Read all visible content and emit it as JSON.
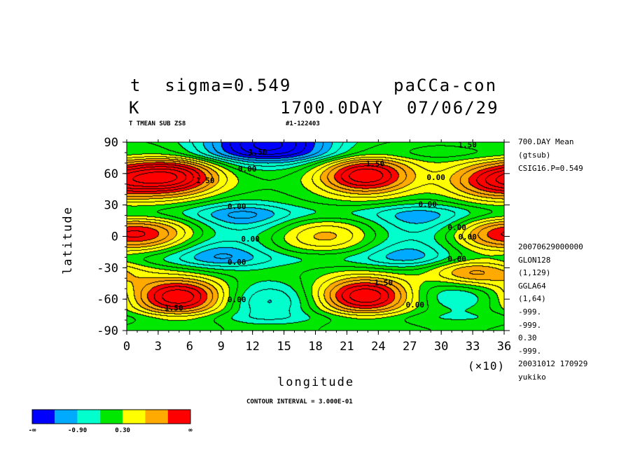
{
  "header": {
    "title_left": "t  sigma=0.549",
    "title_right": "paCCa-con",
    "unit": "K",
    "date": "1700.0DAY  07/06/29",
    "sub_left": "T TMEAN SUB ZS8",
    "sub_mid": "#1-122403"
  },
  "right_info": {
    "top": [
      "700.DAY Mean",
      "(gtsub)",
      "CSIG16.P=0.549"
    ],
    "bottom": [
      "20070629000000",
      "GLON128",
      "(1,129)",
      "GGLA64",
      "(1,64)",
      "-999.",
      "-999.",
      "0.30",
      "-999.",
      "20031012 170929",
      "yukiko"
    ]
  },
  "footer": {
    "contour_interval": "CONTOUR INTERVAL = 3.000E-01"
  },
  "colorbar": {
    "colors": [
      "#0000ff",
      "#00aaff",
      "#00ffcc",
      "#00e800",
      "#ffff00",
      "#ffaa00",
      "#ff0000"
    ],
    "labels": [
      "-∞",
      "-0.90",
      "0.30",
      "∞"
    ]
  },
  "chart_data": {
    "type": "heatmap",
    "title": "t  sigma=0.549",
    "xlabel": "longitude",
    "ylabel": "latitude",
    "x_multiplier_label": "(×10)",
    "xlim": [
      0,
      36
    ],
    "ylim": [
      -90,
      90
    ],
    "x_ticks": [
      "0",
      "3",
      "6",
      "9",
      "12",
      "15",
      "18",
      "21",
      "24",
      "27",
      "30",
      "33",
      "36"
    ],
    "y_ticks": [
      "90",
      "60",
      "30",
      "0",
      "-30",
      "-60",
      "-90"
    ],
    "contour_interval": 0.3,
    "color_levels": [
      -1.5,
      -0.9,
      -0.3,
      0.3,
      0.9,
      1.5
    ],
    "level_colors": [
      "#0000ff",
      "#00aaff",
      "#00ffcc",
      "#00e800",
      "#ffff00",
      "#ffaa00",
      "#ff0000"
    ],
    "contour_labels": [
      {
        "text": "1.50",
        "x": 12.5,
        "y": 78
      },
      {
        "text": "0.00",
        "x": 11.5,
        "y": 62
      },
      {
        "text": "1.50",
        "x": 7.5,
        "y": 51
      },
      {
        "text": "0.00",
        "x": 10.5,
        "y": 26
      },
      {
        "text": "0.00",
        "x": 11.8,
        "y": -5
      },
      {
        "text": "0.00",
        "x": 10.5,
        "y": -27
      },
      {
        "text": "1.50",
        "x": 4.5,
        "y": -71
      },
      {
        "text": "0.00",
        "x": 10.5,
        "y": -63
      },
      {
        "text": "1.50",
        "x": 23.7,
        "y": 67
      },
      {
        "text": "0.00",
        "x": 29.5,
        "y": 54
      },
      {
        "text": "0.00",
        "x": 28.7,
        "y": 28
      },
      {
        "text": "0.00",
        "x": 31.5,
        "y": 6
      },
      {
        "text": "0.00",
        "x": 32.5,
        "y": -3
      },
      {
        "text": "0.00",
        "x": 31.5,
        "y": -24
      },
      {
        "text": "1.50",
        "x": 24.5,
        "y": -47
      },
      {
        "text": "0.00",
        "x": 27.5,
        "y": -68
      },
      {
        "text": "1.50",
        "x": 32.5,
        "y": 85
      }
    ],
    "features": [
      {
        "kind": "max",
        "lon": 45,
        "lat": 57,
        "value": 2.4
      },
      {
        "kind": "max",
        "lon": 228,
        "lat": 58,
        "value": 2.4
      },
      {
        "kind": "max",
        "lon": 350,
        "lat": 53,
        "value": 1.8
      },
      {
        "kind": "max",
        "lon": 50,
        "lat": -58,
        "value": 2.4
      },
      {
        "kind": "max",
        "lon": 228,
        "lat": -57,
        "value": 2.4
      },
      {
        "kind": "max",
        "lon": 328,
        "lat": -36,
        "value": 1.6
      },
      {
        "kind": "max",
        "lon": 25,
        "lat": 2,
        "value": 1.1
      },
      {
        "kind": "max",
        "lon": 190,
        "lat": 0,
        "value": 1.0
      },
      {
        "kind": "max",
        "lon": 350,
        "lat": 2,
        "value": 1.1
      },
      {
        "kind": "min",
        "lon": 135,
        "lat": 88,
        "value": -2.5
      },
      {
        "kind": "min",
        "lon": 110,
        "lat": 18,
        "value": -1.0
      },
      {
        "kind": "min",
        "lon": 280,
        "lat": 15,
        "value": -0.9
      },
      {
        "kind": "min",
        "lon": 90,
        "lat": -16,
        "value": -1.0
      },
      {
        "kind": "min",
        "lon": 270,
        "lat": -16,
        "value": -0.9
      },
      {
        "kind": "min",
        "lon": 135,
        "lat": -62,
        "value": -1.0
      },
      {
        "kind": "min",
        "lon": 315,
        "lat": -52,
        "value": -0.9
      }
    ]
  }
}
